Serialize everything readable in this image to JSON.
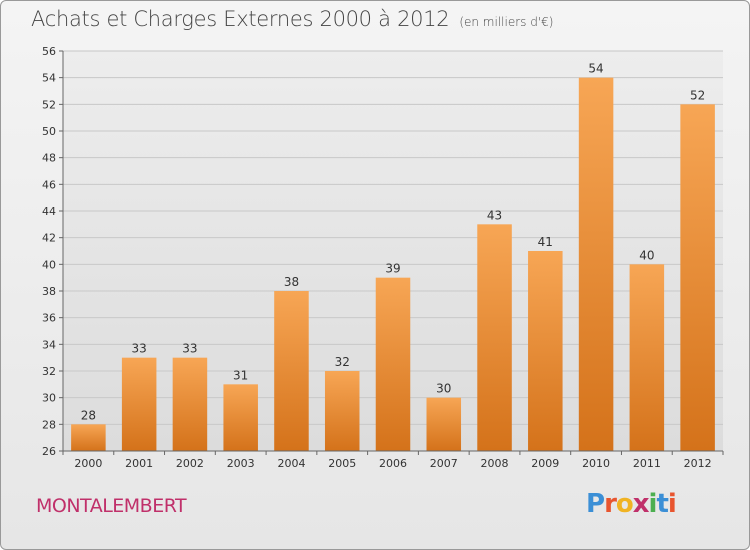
{
  "header": {
    "title": "Achats et Charges Externes 2000 à 2012",
    "subtitle": "(en milliers d'€)"
  },
  "footer": {
    "commune": "MONTALEMBERT",
    "logo_text": "Proxiti"
  },
  "colors": {
    "bar_light": "#f7a655",
    "bar_dark": "#d4721a",
    "commune": "#c0306a"
  },
  "chart_data": {
    "type": "bar",
    "title": "Achats et Charges Externes 2000 à 2012",
    "subtitle": "(en milliers d'€)",
    "categories": [
      "2000",
      "2001",
      "2002",
      "2003",
      "2004",
      "2005",
      "2006",
      "2007",
      "2008",
      "2009",
      "2010",
      "2011",
      "2012"
    ],
    "values": [
      28,
      33,
      33,
      31,
      38,
      32,
      39,
      30,
      43,
      41,
      54,
      40,
      52
    ],
    "xlabel": "",
    "ylabel": "",
    "ylim": [
      26,
      56
    ],
    "yticks": [
      26,
      28,
      30,
      32,
      34,
      36,
      38,
      40,
      42,
      44,
      46,
      48,
      50,
      52,
      54,
      56
    ],
    "grid": true,
    "data_labels": true
  }
}
